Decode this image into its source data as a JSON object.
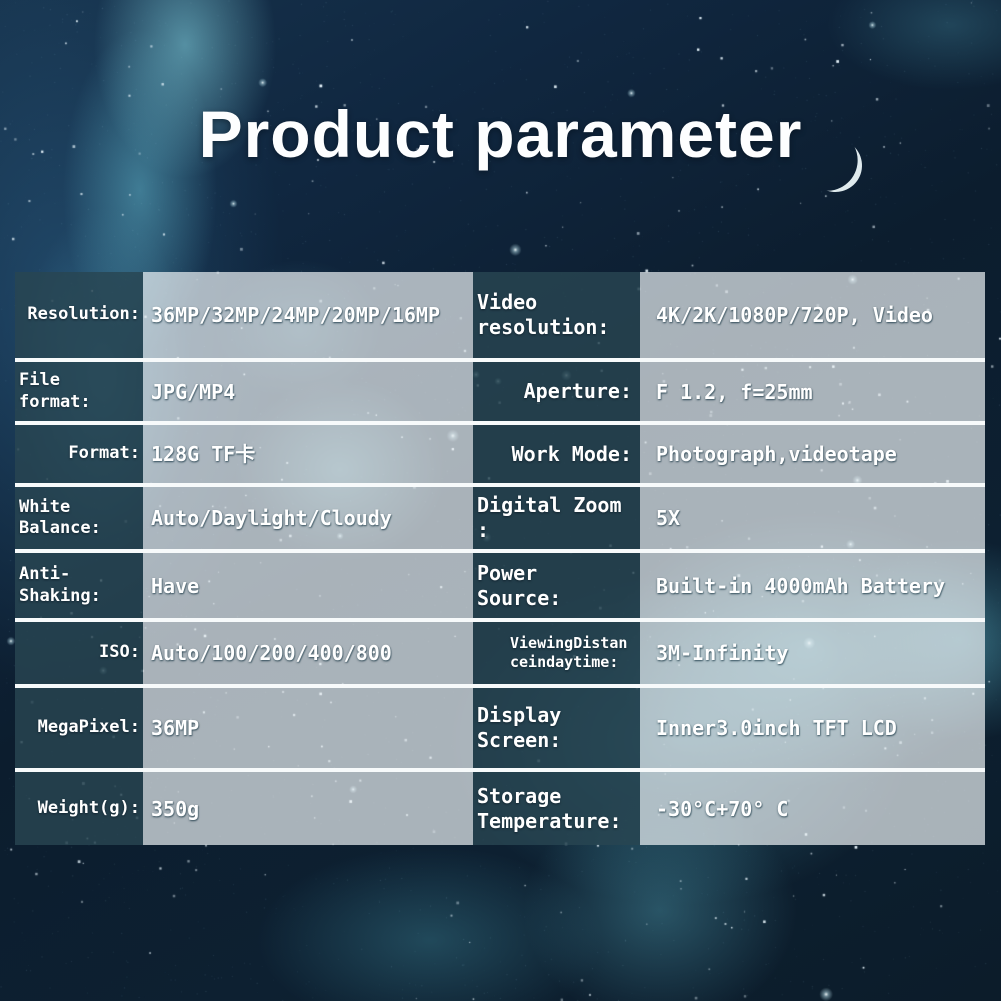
{
  "title": "Product parameter",
  "table": {
    "left": [
      {
        "label": "Resolution:",
        "value": "36MP/32MP/24MP/20MP/16MP"
      },
      {
        "label": "File format:",
        "value": "JPG/MP4"
      },
      {
        "label": "Format:",
        "value": "128G TF卡"
      },
      {
        "label": "White Balance:",
        "value": "Auto/Daylight/Cloudy"
      },
      {
        "label": "Anti-Shaking:",
        "value": "Have"
      },
      {
        "label": "ISO:",
        "value": "Auto/100/200/400/800"
      },
      {
        "label": "MegaPixel:",
        "value": "36MP"
      },
      {
        "label": "Weight(g):",
        "value": "350g"
      }
    ],
    "right": [
      {
        "label": "Video resolution:",
        "value": "4K/2K/1080P/720P, Video"
      },
      {
        "label": "Aperture:",
        "value": "F 1.2, f=25mm"
      },
      {
        "label": "Work Mode:",
        "value": "Photograph,videotape"
      },
      {
        "label": "Digital Zoom :",
        "value": "5X"
      },
      {
        "label": "Power Source:",
        "value": "Built-in 4000mAh Battery"
      },
      {
        "label": "ViewingDistanceindaytime:",
        "value": "3M-Infinity"
      },
      {
        "label": "Display Screen:",
        "value": "Inner3.0inch TFT LCD"
      },
      {
        "label": "Storage Temperature:",
        "value": "-30°C+70° C"
      }
    ]
  },
  "colors": {
    "background_navy": "#0d1e2c",
    "nebula_teal": "#7fd0dd",
    "label_cell": "#2a4854",
    "value_cell": "#eef3f5",
    "divider": "#f7fafb",
    "text": "#ffffff"
  }
}
